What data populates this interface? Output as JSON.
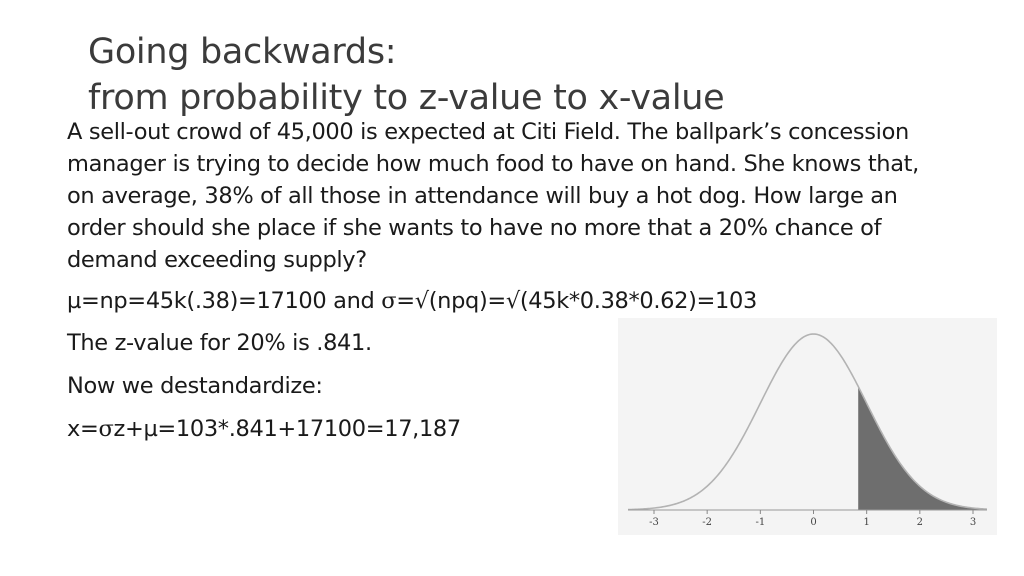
{
  "title": {
    "line1": "Going backwards:",
    "line2": "from probability to z-value to x-value"
  },
  "problem": "A sell-out crowd of 45,000 is expected at Citi Field. The ballpark’s concession manager is trying to decide how much food to have on hand. She knows that, on average, 38% of all those in attendance will buy a hot dog. How large an order should she place if she wants to have no more that a 20% chance of demand exceeding supply?",
  "equations": {
    "mean": {
      "part1": "µ=np=45k(.38)=17100 and ",
      "sigma": "σ",
      "part2": "=√(npq)=√(45k*0.38*0.62)=103"
    },
    "zvalue": "The z-value for 20% is .841.",
    "destandardize": "Now we destandardize:",
    "result": {
      "part1": "x=",
      "sigma": "σ",
      "part2": "z+µ=103*.841+17100=17,187"
    }
  },
  "chart_data": {
    "type": "area",
    "curve": "standard normal density",
    "xlim": [
      -3,
      3
    ],
    "x_ticks": [
      "-3",
      "-2",
      "-1",
      "0",
      "1",
      "2",
      "3"
    ],
    "shaded_from": 0.841,
    "shaded_to": 3,
    "shaded_color": "#6e6e6e",
    "curve_color": "#b3b3b3"
  }
}
